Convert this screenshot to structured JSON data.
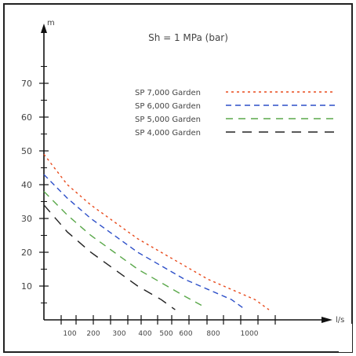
{
  "chart_data": {
    "type": "line",
    "title": "Sh = 1 MPa (bar)",
    "xlabel": "l/s",
    "ylabel": "m",
    "y_ticks": [
      10,
      20,
      30,
      40,
      50,
      60,
      70
    ],
    "x_tick_labels": [
      "100",
      "200",
      "300",
      "400",
      "500",
      "600",
      "800",
      "1000"
    ],
    "ylim": [
      0,
      80
    ],
    "legend_position": "top-right",
    "series": [
      {
        "name": "SP 7,000 Garden",
        "color": "#e84a1c",
        "dash": "3,4",
        "points": [
          [
            0,
            49
          ],
          [
            100,
            40
          ],
          [
            200,
            34
          ],
          [
            300,
            29
          ],
          [
            400,
            24
          ],
          [
            500,
            20
          ],
          [
            600,
            16
          ],
          [
            700,
            12
          ],
          [
            800,
            9
          ],
          [
            900,
            6
          ],
          [
            960,
            3
          ]
        ]
      },
      {
        "name": "SP 6,000 Garden",
        "color": "#2d4fc8",
        "dash": "7,5",
        "points": [
          [
            0,
            43
          ],
          [
            100,
            36
          ],
          [
            200,
            30
          ],
          [
            300,
            25
          ],
          [
            400,
            20
          ],
          [
            500,
            16
          ],
          [
            600,
            12
          ],
          [
            700,
            9
          ],
          [
            800,
            6
          ],
          [
            860,
            3
          ]
        ]
      },
      {
        "name": "SP 5,000 Garden",
        "color": "#5aa84a",
        "dash": "9,7",
        "points": [
          [
            0,
            38
          ],
          [
            100,
            31
          ],
          [
            200,
            25
          ],
          [
            300,
            20
          ],
          [
            400,
            15
          ],
          [
            500,
            11
          ],
          [
            600,
            7
          ],
          [
            680,
            4
          ]
        ]
      },
      {
        "name": "SP 4,000 Garden",
        "color": "#222222",
        "dash": "12,9",
        "points": [
          [
            0,
            34
          ],
          [
            100,
            26
          ],
          [
            200,
            20
          ],
          [
            300,
            15
          ],
          [
            400,
            10
          ],
          [
            500,
            6
          ],
          [
            560,
            3
          ]
        ]
      }
    ]
  }
}
